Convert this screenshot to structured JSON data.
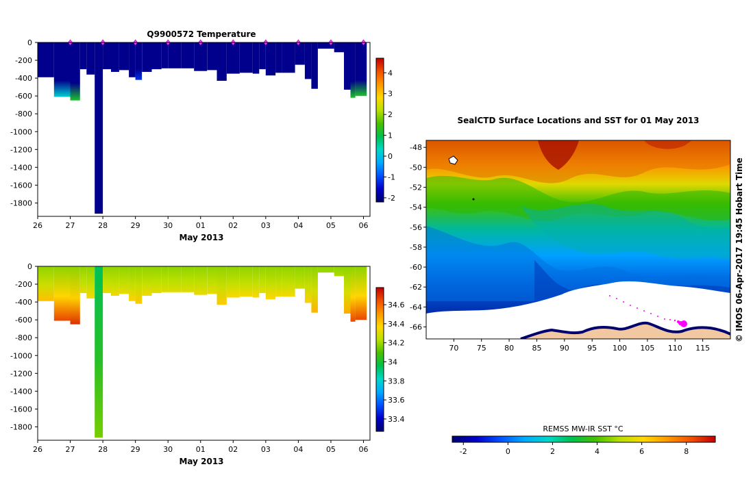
{
  "chart_data": [
    {
      "type": "heatmap",
      "title": "Q9900572  Temperature",
      "xlabel": "May 2013",
      "ylabel": "",
      "x_tick_labels": [
        "26",
        "27",
        "28",
        "29",
        "30",
        "01",
        "02",
        "03",
        "04",
        "05",
        "06"
      ],
      "x_range_days": [
        0,
        10.2
      ],
      "y_tick_labels": [
        "0",
        "-200",
        "-400",
        "-600",
        "-800",
        "-1000",
        "-1200",
        "-1400",
        "-1600",
        "-1800"
      ],
      "ylim": [
        -1950,
        0
      ],
      "colorbar": {
        "tick_labels": [
          "4",
          "3",
          "2",
          "1",
          "0",
          "-1",
          "-2"
        ],
        "range": [
          -2.2,
          4.7
        ],
        "colors": [
          "#000070",
          "#0000c8",
          "#0050ff",
          "#00aaff",
          "#00d8c8",
          "#00c050",
          "#48c000",
          "#b8e000",
          "#ffd800",
          "#ff9800",
          "#f05000",
          "#c00000"
        ]
      },
      "markers": {
        "label": "surface positions",
        "x": [
          1,
          2,
          3,
          4,
          5,
          6,
          7,
          8,
          9,
          10
        ]
      },
      "profiles": [
        {
          "x0": 0.0,
          "x1": 0.5,
          "depth": -390,
          "bottom_value": -2.0
        },
        {
          "x0": 0.5,
          "x1": 1.0,
          "depth": -610,
          "bottom_value": 0.2
        },
        {
          "x0": 1.0,
          "x1": 1.3,
          "depth": -650,
          "bottom_value": 1.2
        },
        {
          "x0": 1.3,
          "x1": 1.5,
          "depth": -300,
          "bottom_value": -2.0
        },
        {
          "x0": 1.5,
          "x1": 1.75,
          "depth": -360,
          "bottom_value": -2.0
        },
        {
          "x0": 1.75,
          "x1": 2.0,
          "depth": -1920,
          "bottom_value": -2.0
        },
        {
          "x0": 2.0,
          "x1": 2.25,
          "depth": -300,
          "bottom_value": -2.0
        },
        {
          "x0": 2.25,
          "x1": 2.5,
          "depth": -330,
          "bottom_value": -2.0
        },
        {
          "x0": 2.5,
          "x1": 2.8,
          "depth": -310,
          "bottom_value": -2.0
        },
        {
          "x0": 2.8,
          "x1": 3.0,
          "depth": -390,
          "bottom_value": -2.0
        },
        {
          "x0": 3.0,
          "x1": 3.2,
          "depth": -420,
          "bottom_value": -1.2
        },
        {
          "x0": 3.2,
          "x1": 3.5,
          "depth": -330,
          "bottom_value": -2.0
        },
        {
          "x0": 3.5,
          "x1": 3.8,
          "depth": -300,
          "bottom_value": -2.0
        },
        {
          "x0": 3.8,
          "x1": 4.0,
          "depth": -290,
          "bottom_value": -2.0
        },
        {
          "x0": 4.0,
          "x1": 4.4,
          "depth": -290,
          "bottom_value": -2.0
        },
        {
          "x0": 4.4,
          "x1": 4.8,
          "depth": -290,
          "bottom_value": -2.0
        },
        {
          "x0": 4.8,
          "x1": 5.2,
          "depth": -320,
          "bottom_value": -2.0
        },
        {
          "x0": 5.2,
          "x1": 5.5,
          "depth": -310,
          "bottom_value": -2.0
        },
        {
          "x0": 5.5,
          "x1": 5.8,
          "depth": -430,
          "bottom_value": -2.0
        },
        {
          "x0": 5.8,
          "x1": 6.2,
          "depth": -350,
          "bottom_value": -2.0
        },
        {
          "x0": 6.2,
          "x1": 6.6,
          "depth": -340,
          "bottom_value": -2.0
        },
        {
          "x0": 6.6,
          "x1": 6.8,
          "depth": -350,
          "bottom_value": -2.0
        },
        {
          "x0": 6.8,
          "x1": 7.0,
          "depth": -300,
          "bottom_value": -2.0
        },
        {
          "x0": 7.0,
          "x1": 7.3,
          "depth": -370,
          "bottom_value": -2.0
        },
        {
          "x0": 7.3,
          "x1": 7.5,
          "depth": -340,
          "bottom_value": -2.0
        },
        {
          "x0": 7.5,
          "x1": 7.9,
          "depth": -340,
          "bottom_value": -2.0
        },
        {
          "x0": 7.9,
          "x1": 8.2,
          "depth": -250,
          "bottom_value": -2.0
        },
        {
          "x0": 8.2,
          "x1": 8.4,
          "depth": -410,
          "bottom_value": -2.0
        },
        {
          "x0": 8.4,
          "x1": 8.6,
          "depth": -520,
          "bottom_value": -2.0
        },
        {
          "x0": 8.6,
          "x1": 9.1,
          "depth": -70,
          "bottom_value": -2.0
        },
        {
          "x0": 9.1,
          "x1": 9.4,
          "depth": -110,
          "bottom_value": -2.0
        },
        {
          "x0": 9.4,
          "x1": 9.6,
          "depth": -530,
          "bottom_value": -2.0
        },
        {
          "x0": 9.6,
          "x1": 9.75,
          "depth": -620,
          "bottom_value": 1.2
        },
        {
          "x0": 9.75,
          "x1": 10.1,
          "depth": -600,
          "bottom_value": 1.2
        }
      ]
    },
    {
      "type": "heatmap",
      "title": "",
      "xlabel": "May 2013",
      "ylabel": "",
      "x_tick_labels": [
        "26",
        "27",
        "28",
        "29",
        "30",
        "01",
        "02",
        "03",
        "04",
        "05",
        "06"
      ],
      "x_range_days": [
        0,
        10.2
      ],
      "y_tick_labels": [
        "0",
        "-200",
        "-400",
        "-600",
        "-800",
        "-1000",
        "-1200",
        "-1400",
        "-1600",
        "-1800"
      ],
      "ylim": [
        -1950,
        0
      ],
      "colorbar": {
        "tick_labels": [
          "34.6",
          "34.4",
          "34.2",
          "34",
          "33.8",
          "33.6",
          "33.4"
        ],
        "range": [
          33.27,
          34.78
        ],
        "colors": [
          "#000070",
          "#0000c8",
          "#0050ff",
          "#00aaff",
          "#00d8c8",
          "#00c050",
          "#48c000",
          "#b8e000",
          "#ffd800",
          "#ff9800",
          "#f05000",
          "#c00000"
        ]
      },
      "profiles": [
        {
          "x0": 0.0,
          "x1": 0.5,
          "depth": -390,
          "top_value": 34.18,
          "bottom_value": 34.42
        },
        {
          "x0": 0.5,
          "x1": 1.0,
          "depth": -610,
          "top_value": 34.18,
          "bottom_value": 34.66
        },
        {
          "x0": 1.0,
          "x1": 1.3,
          "depth": -650,
          "top_value": 34.18,
          "bottom_value": 34.7
        },
        {
          "x0": 1.3,
          "x1": 1.5,
          "depth": -300,
          "top_value": 34.18,
          "bottom_value": 34.32
        },
        {
          "x0": 1.5,
          "x1": 1.75,
          "depth": -360,
          "top_value": 34.18,
          "bottom_value": 34.35
        },
        {
          "x0": 1.75,
          "x1": 2.0,
          "depth": -1920,
          "top_value": 33.95,
          "bottom_value": 34.15
        },
        {
          "x0": 2.0,
          "x1": 2.25,
          "depth": -300,
          "top_value": 34.18,
          "bottom_value": 34.32
        },
        {
          "x0": 2.25,
          "x1": 2.5,
          "depth": -330,
          "top_value": 34.18,
          "bottom_value": 34.34
        },
        {
          "x0": 2.5,
          "x1": 2.8,
          "depth": -310,
          "top_value": 34.18,
          "bottom_value": 34.33
        },
        {
          "x0": 2.8,
          "x1": 3.0,
          "depth": -390,
          "top_value": 34.18,
          "bottom_value": 34.38
        },
        {
          "x0": 3.0,
          "x1": 3.2,
          "depth": -420,
          "top_value": 34.18,
          "bottom_value": 34.4
        },
        {
          "x0": 3.2,
          "x1": 3.5,
          "depth": -330,
          "top_value": 34.18,
          "bottom_value": 34.34
        },
        {
          "x0": 3.5,
          "x1": 3.8,
          "depth": -300,
          "top_value": 34.18,
          "bottom_value": 34.32
        },
        {
          "x0": 3.8,
          "x1": 4.0,
          "depth": -290,
          "top_value": 34.18,
          "bottom_value": 34.31
        },
        {
          "x0": 4.0,
          "x1": 4.4,
          "depth": -290,
          "top_value": 34.18,
          "bottom_value": 34.31
        },
        {
          "x0": 4.4,
          "x1": 4.8,
          "depth": -290,
          "top_value": 34.18,
          "bottom_value": 34.31
        },
        {
          "x0": 4.8,
          "x1": 5.2,
          "depth": -320,
          "top_value": 34.18,
          "bottom_value": 34.33
        },
        {
          "x0": 5.2,
          "x1": 5.5,
          "depth": -310,
          "top_value": 34.18,
          "bottom_value": 34.33
        },
        {
          "x0": 5.5,
          "x1": 5.8,
          "depth": -430,
          "top_value": 34.18,
          "bottom_value": 34.4
        },
        {
          "x0": 5.8,
          "x1": 6.2,
          "depth": -350,
          "top_value": 34.18,
          "bottom_value": 34.36
        },
        {
          "x0": 6.2,
          "x1": 6.6,
          "depth": -340,
          "top_value": 34.18,
          "bottom_value": 34.35
        },
        {
          "x0": 6.6,
          "x1": 6.8,
          "depth": -350,
          "top_value": 34.18,
          "bottom_value": 34.36
        },
        {
          "x0": 6.8,
          "x1": 7.0,
          "depth": -300,
          "top_value": 34.18,
          "bottom_value": 34.32
        },
        {
          "x0": 7.0,
          "x1": 7.3,
          "depth": -370,
          "top_value": 34.18,
          "bottom_value": 34.37
        },
        {
          "x0": 7.3,
          "x1": 7.5,
          "depth": -340,
          "top_value": 34.18,
          "bottom_value": 34.35
        },
        {
          "x0": 7.5,
          "x1": 7.9,
          "depth": -340,
          "top_value": 34.18,
          "bottom_value": 34.35
        },
        {
          "x0": 7.9,
          "x1": 8.2,
          "depth": -250,
          "top_value": 34.18,
          "bottom_value": 34.28
        },
        {
          "x0": 8.2,
          "x1": 8.4,
          "depth": -410,
          "top_value": 34.18,
          "bottom_value": 34.39
        },
        {
          "x0": 8.4,
          "x1": 8.6,
          "depth": -520,
          "top_value": 34.18,
          "bottom_value": 34.45
        },
        {
          "x0": 8.6,
          "x1": 9.1,
          "depth": -70,
          "top_value": 34.18,
          "bottom_value": 34.2
        },
        {
          "x0": 9.1,
          "x1": 9.4,
          "depth": -110,
          "top_value": 34.18,
          "bottom_value": 34.22
        },
        {
          "x0": 9.4,
          "x1": 9.6,
          "depth": -530,
          "top_value": 34.18,
          "bottom_value": 34.46
        },
        {
          "x0": 9.6,
          "x1": 9.75,
          "depth": -620,
          "top_value": 34.18,
          "bottom_value": 34.66
        },
        {
          "x0": 9.75,
          "x1": 10.1,
          "depth": -600,
          "top_value": 34.18,
          "bottom_value": 34.66
        }
      ]
    },
    {
      "type": "heatmap",
      "title": "SealCTD Surface Locations and SST for 01 May 2013",
      "xlabel": "",
      "ylabel": "",
      "xlim": [
        65,
        120
      ],
      "ylim": [
        -67.2,
        -47.3
      ],
      "x_tick_labels": [
        "70",
        "75",
        "80",
        "85",
        "90",
        "95",
        "100",
        "105",
        "110",
        "115"
      ],
      "y_tick_labels": [
        "-48",
        "-50",
        "-52",
        "-54",
        "-56",
        "-58",
        "-60",
        "-62",
        "-64",
        "-66"
      ],
      "colorbar": {
        "label": "REMSS MW-IR SST °C",
        "tick_labels": [
          "-2",
          "0",
          "2",
          "4",
          "6",
          "8"
        ],
        "range": [
          -2.5,
          9.3
        ],
        "colors": [
          "#000070",
          "#0000c8",
          "#0050ff",
          "#00aaff",
          "#00d8c8",
          "#00c050",
          "#48c000",
          "#b8e000",
          "#ffd800",
          "#ff9800",
          "#f05000",
          "#c00000"
        ]
      },
      "side_label": "© IMOS 06-Apr-2017 19:45 Hobart Time",
      "track_color": "#ff00ff",
      "land_color": "#f2c8a0"
    }
  ]
}
